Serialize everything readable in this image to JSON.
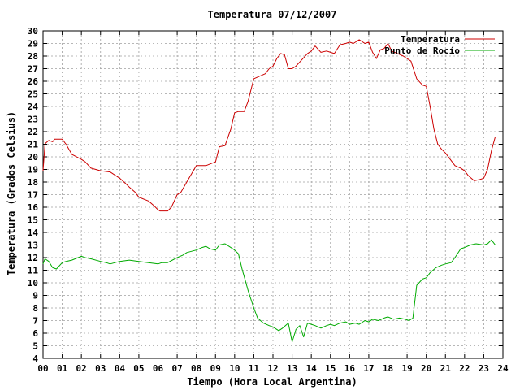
{
  "chart_data": {
    "type": "line",
    "title": "Temperatura 07/12/2007",
    "xlabel": "Tiempo (Hora Local Argentina)",
    "ylabel": "Temperatura (Grados Celsius)",
    "xlim": [
      0,
      24
    ],
    "ylim": [
      4,
      30
    ],
    "x_ticks": [
      "00",
      "01",
      "02",
      "03",
      "04",
      "05",
      "06",
      "07",
      "08",
      "09",
      "10",
      "11",
      "12",
      "13",
      "14",
      "15",
      "16",
      "17",
      "18",
      "19",
      "20",
      "21",
      "22",
      "23",
      "24"
    ],
    "y_ticks": [
      "4",
      "5",
      "6",
      "7",
      "8",
      "9",
      "10",
      "11",
      "12",
      "13",
      "14",
      "15",
      "16",
      "17",
      "18",
      "19",
      "20",
      "21",
      "22",
      "23",
      "24",
      "25",
      "26",
      "27",
      "28",
      "29",
      "30"
    ],
    "grid": true,
    "legend_position": "top-right",
    "series": [
      {
        "name": "Temperatura",
        "color": "#cc0000",
        "x": [
          0.0,
          0.1,
          0.15,
          0.3,
          0.5,
          0.6,
          0.8,
          1.0,
          1.2,
          1.5,
          2.0,
          2.2,
          2.5,
          3.0,
          3.5,
          4.0,
          4.3,
          4.5,
          4.8,
          5.0,
          5.5,
          5.8,
          6.0,
          6.1,
          6.3,
          6.5,
          6.7,
          7.0,
          7.2,
          7.5,
          8.0,
          8.2,
          8.5,
          9.0,
          9.2,
          9.5,
          9.8,
          10.0,
          10.2,
          10.4,
          10.5,
          10.7,
          11.0,
          11.3,
          11.6,
          11.8,
          12.0,
          12.2,
          12.4,
          12.6,
          12.8,
          13.0,
          13.2,
          13.5,
          13.8,
          14.0,
          14.2,
          14.5,
          14.8,
          15.0,
          15.2,
          15.5,
          15.8,
          16.0,
          16.2,
          16.5,
          16.8,
          17.0,
          17.2,
          17.4,
          17.6,
          17.8,
          18.0,
          18.2,
          18.5,
          18.8,
          19.0,
          19.2,
          19.5,
          19.8,
          20.0,
          20.2,
          20.4,
          20.6,
          20.8,
          21.0,
          21.5,
          21.8,
          22.0,
          22.2,
          22.5,
          22.8,
          23.0,
          23.2,
          23.4,
          23.6
        ],
        "y": [
          18.9,
          21.0,
          21.1,
          21.3,
          21.2,
          21.4,
          21.4,
          21.4,
          21.0,
          20.2,
          19.8,
          19.6,
          19.1,
          18.9,
          18.8,
          18.3,
          17.9,
          17.6,
          17.2,
          16.8,
          16.5,
          16.1,
          15.8,
          15.7,
          15.7,
          15.7,
          16.0,
          17.0,
          17.2,
          18.0,
          19.3,
          19.3,
          19.3,
          19.6,
          20.8,
          20.9,
          22.2,
          23.5,
          23.6,
          23.6,
          23.6,
          24.4,
          26.2,
          26.4,
          26.6,
          27.0,
          27.2,
          27.8,
          28.2,
          28.1,
          27.0,
          27.0,
          27.2,
          27.7,
          28.2,
          28.4,
          28.8,
          28.3,
          28.4,
          28.3,
          28.2,
          28.9,
          29.0,
          29.1,
          29.0,
          29.3,
          29.0,
          29.1,
          28.3,
          27.8,
          28.5,
          28.6,
          29.0,
          28.4,
          28.2,
          28.0,
          27.8,
          27.6,
          26.2,
          25.7,
          25.6,
          24.0,
          22.2,
          21.0,
          20.6,
          20.3,
          19.3,
          19.1,
          18.9,
          18.5,
          18.1,
          18.2,
          18.3,
          19.0,
          20.5,
          21.6
        ]
      },
      {
        "name": "Punto de Rocío",
        "color": "#00aa00",
        "x": [
          0.0,
          0.1,
          0.3,
          0.5,
          0.7,
          1.0,
          1.2,
          1.5,
          2.0,
          2.2,
          2.5,
          3.0,
          3.3,
          3.5,
          4.0,
          4.5,
          5.0,
          5.5,
          6.0,
          6.2,
          6.5,
          7.0,
          7.3,
          7.5,
          8.0,
          8.3,
          8.5,
          8.7,
          9.0,
          9.2,
          9.5,
          9.8,
          10.0,
          10.2,
          10.4,
          10.5,
          10.7,
          11.0,
          11.2,
          11.5,
          11.8,
          12.0,
          12.3,
          12.5,
          12.8,
          13.0,
          13.2,
          13.4,
          13.6,
          13.8,
          14.0,
          14.2,
          14.5,
          14.8,
          15.0,
          15.2,
          15.5,
          15.8,
          16.0,
          16.3,
          16.5,
          16.8,
          17.0,
          17.2,
          17.5,
          17.8,
          18.0,
          18.3,
          18.6,
          18.9,
          19.1,
          19.3,
          19.5,
          19.8,
          20.0,
          20.2,
          20.5,
          20.8,
          21.0,
          21.3,
          21.5,
          21.8,
          22.0,
          22.3,
          22.6,
          23.0,
          23.2,
          23.4,
          23.6
        ],
        "y": [
          11.5,
          11.9,
          11.7,
          11.2,
          11.1,
          11.6,
          11.7,
          11.8,
          12.1,
          12.0,
          11.9,
          11.7,
          11.6,
          11.5,
          11.7,
          11.8,
          11.7,
          11.6,
          11.5,
          11.6,
          11.6,
          12.0,
          12.2,
          12.4,
          12.6,
          12.8,
          12.9,
          12.7,
          12.6,
          13.0,
          13.1,
          12.8,
          12.6,
          12.3,
          11.0,
          10.5,
          9.4,
          8.0,
          7.2,
          6.8,
          6.6,
          6.5,
          6.2,
          6.4,
          6.8,
          5.3,
          6.3,
          6.6,
          5.7,
          6.8,
          6.7,
          6.6,
          6.4,
          6.6,
          6.7,
          6.6,
          6.8,
          6.9,
          6.7,
          6.8,
          6.7,
          7.0,
          6.9,
          7.1,
          7.0,
          7.2,
          7.3,
          7.1,
          7.2,
          7.1,
          7.0,
          7.2,
          9.8,
          10.3,
          10.4,
          10.8,
          11.2,
          11.4,
          11.5,
          11.6,
          12.0,
          12.7,
          12.8,
          13.0,
          13.1,
          13.0,
          13.1,
          13.4,
          13.0
        ]
      }
    ]
  }
}
